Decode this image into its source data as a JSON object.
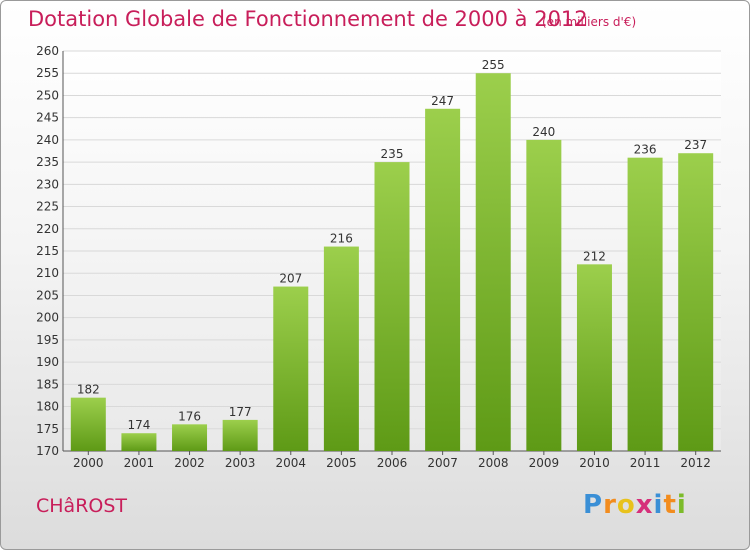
{
  "header": {
    "title": "Dotation Globale de Fonctionnement de 2000 à 2012",
    "subtitle": "(en milliers d'€)"
  },
  "footer": {
    "commune": "CHâROST",
    "logo_letters": [
      "P",
      "r",
      "o",
      "x",
      "i",
      "t",
      "i"
    ],
    "logo_colors": [
      "#3a8fd6",
      "#f28c1e",
      "#e8c21c",
      "#d6307a",
      "#3a8fd6",
      "#f28c1e",
      "#7cbb2a"
    ]
  },
  "colors": {
    "accent": "#c81e5a",
    "bar_light": "#9ccf4c",
    "bar_dark": "#5e9a16",
    "grid": "#d9d9d9"
  },
  "chart_data": {
    "type": "bar",
    "title": "Dotation Globale de Fonctionnement de 2000 à 2012",
    "subtitle": "(en milliers d'€)",
    "categories": [
      "2000",
      "2001",
      "2002",
      "2003",
      "2004",
      "2005",
      "2006",
      "2007",
      "2008",
      "2009",
      "2010",
      "2011",
      "2012"
    ],
    "values": [
      182,
      174,
      176,
      177,
      207,
      216,
      235,
      247,
      255,
      240,
      212,
      236,
      237
    ],
    "xlabel": "",
    "ylabel": "",
    "ylim": [
      170,
      260
    ],
    "yticks": [
      170,
      175,
      180,
      185,
      190,
      195,
      200,
      205,
      210,
      215,
      220,
      225,
      230,
      235,
      240,
      245,
      250,
      255,
      260
    ],
    "grid": true,
    "legend": "none"
  }
}
